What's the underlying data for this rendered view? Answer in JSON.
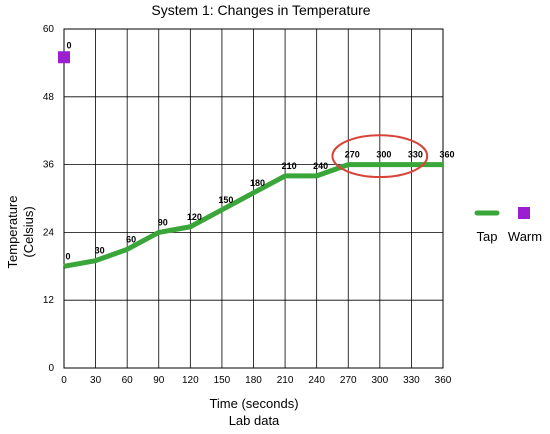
{
  "chart_data": {
    "type": "line",
    "title": "System 1: Changes in Temperature",
    "xlabel": "Time (seconds)",
    "xlabel2": "Lab data",
    "ylabel": "Temperature",
    "ylabel2": "(Celsius)",
    "xlim": [
      0,
      360
    ],
    "ylim": [
      0,
      60
    ],
    "x_ticks": [
      0,
      30,
      60,
      90,
      120,
      150,
      180,
      210,
      240,
      270,
      300,
      330,
      360
    ],
    "y_ticks": [
      0,
      12,
      24,
      36,
      48,
      60
    ],
    "grid": true,
    "legend_position": "right",
    "series": [
      {
        "name": "Tap",
        "color": "#3aa63a",
        "marker": "none",
        "x": [
          0,
          30,
          60,
          90,
          120,
          150,
          180,
          210,
          240,
          270,
          300,
          330,
          360
        ],
        "y": [
          18,
          19,
          21,
          24,
          25,
          28,
          31,
          34,
          34,
          36,
          36,
          36,
          36
        ],
        "point_labels": [
          "0",
          "30",
          "60",
          "90",
          "120",
          "150",
          "180",
          "210",
          "240",
          "270",
          "300",
          "330",
          "360"
        ]
      },
      {
        "name": "Warm",
        "color": "#9b1fd1",
        "marker": "square",
        "x": [
          0
        ],
        "y": [
          55
        ],
        "point_labels": [
          "0"
        ]
      }
    ],
    "annotations": [
      {
        "type": "ellipse",
        "color": "#d9443a",
        "x_center": 300,
        "y_center": 37.5,
        "x_radius": 45,
        "y_radius": 3.7
      }
    ]
  }
}
